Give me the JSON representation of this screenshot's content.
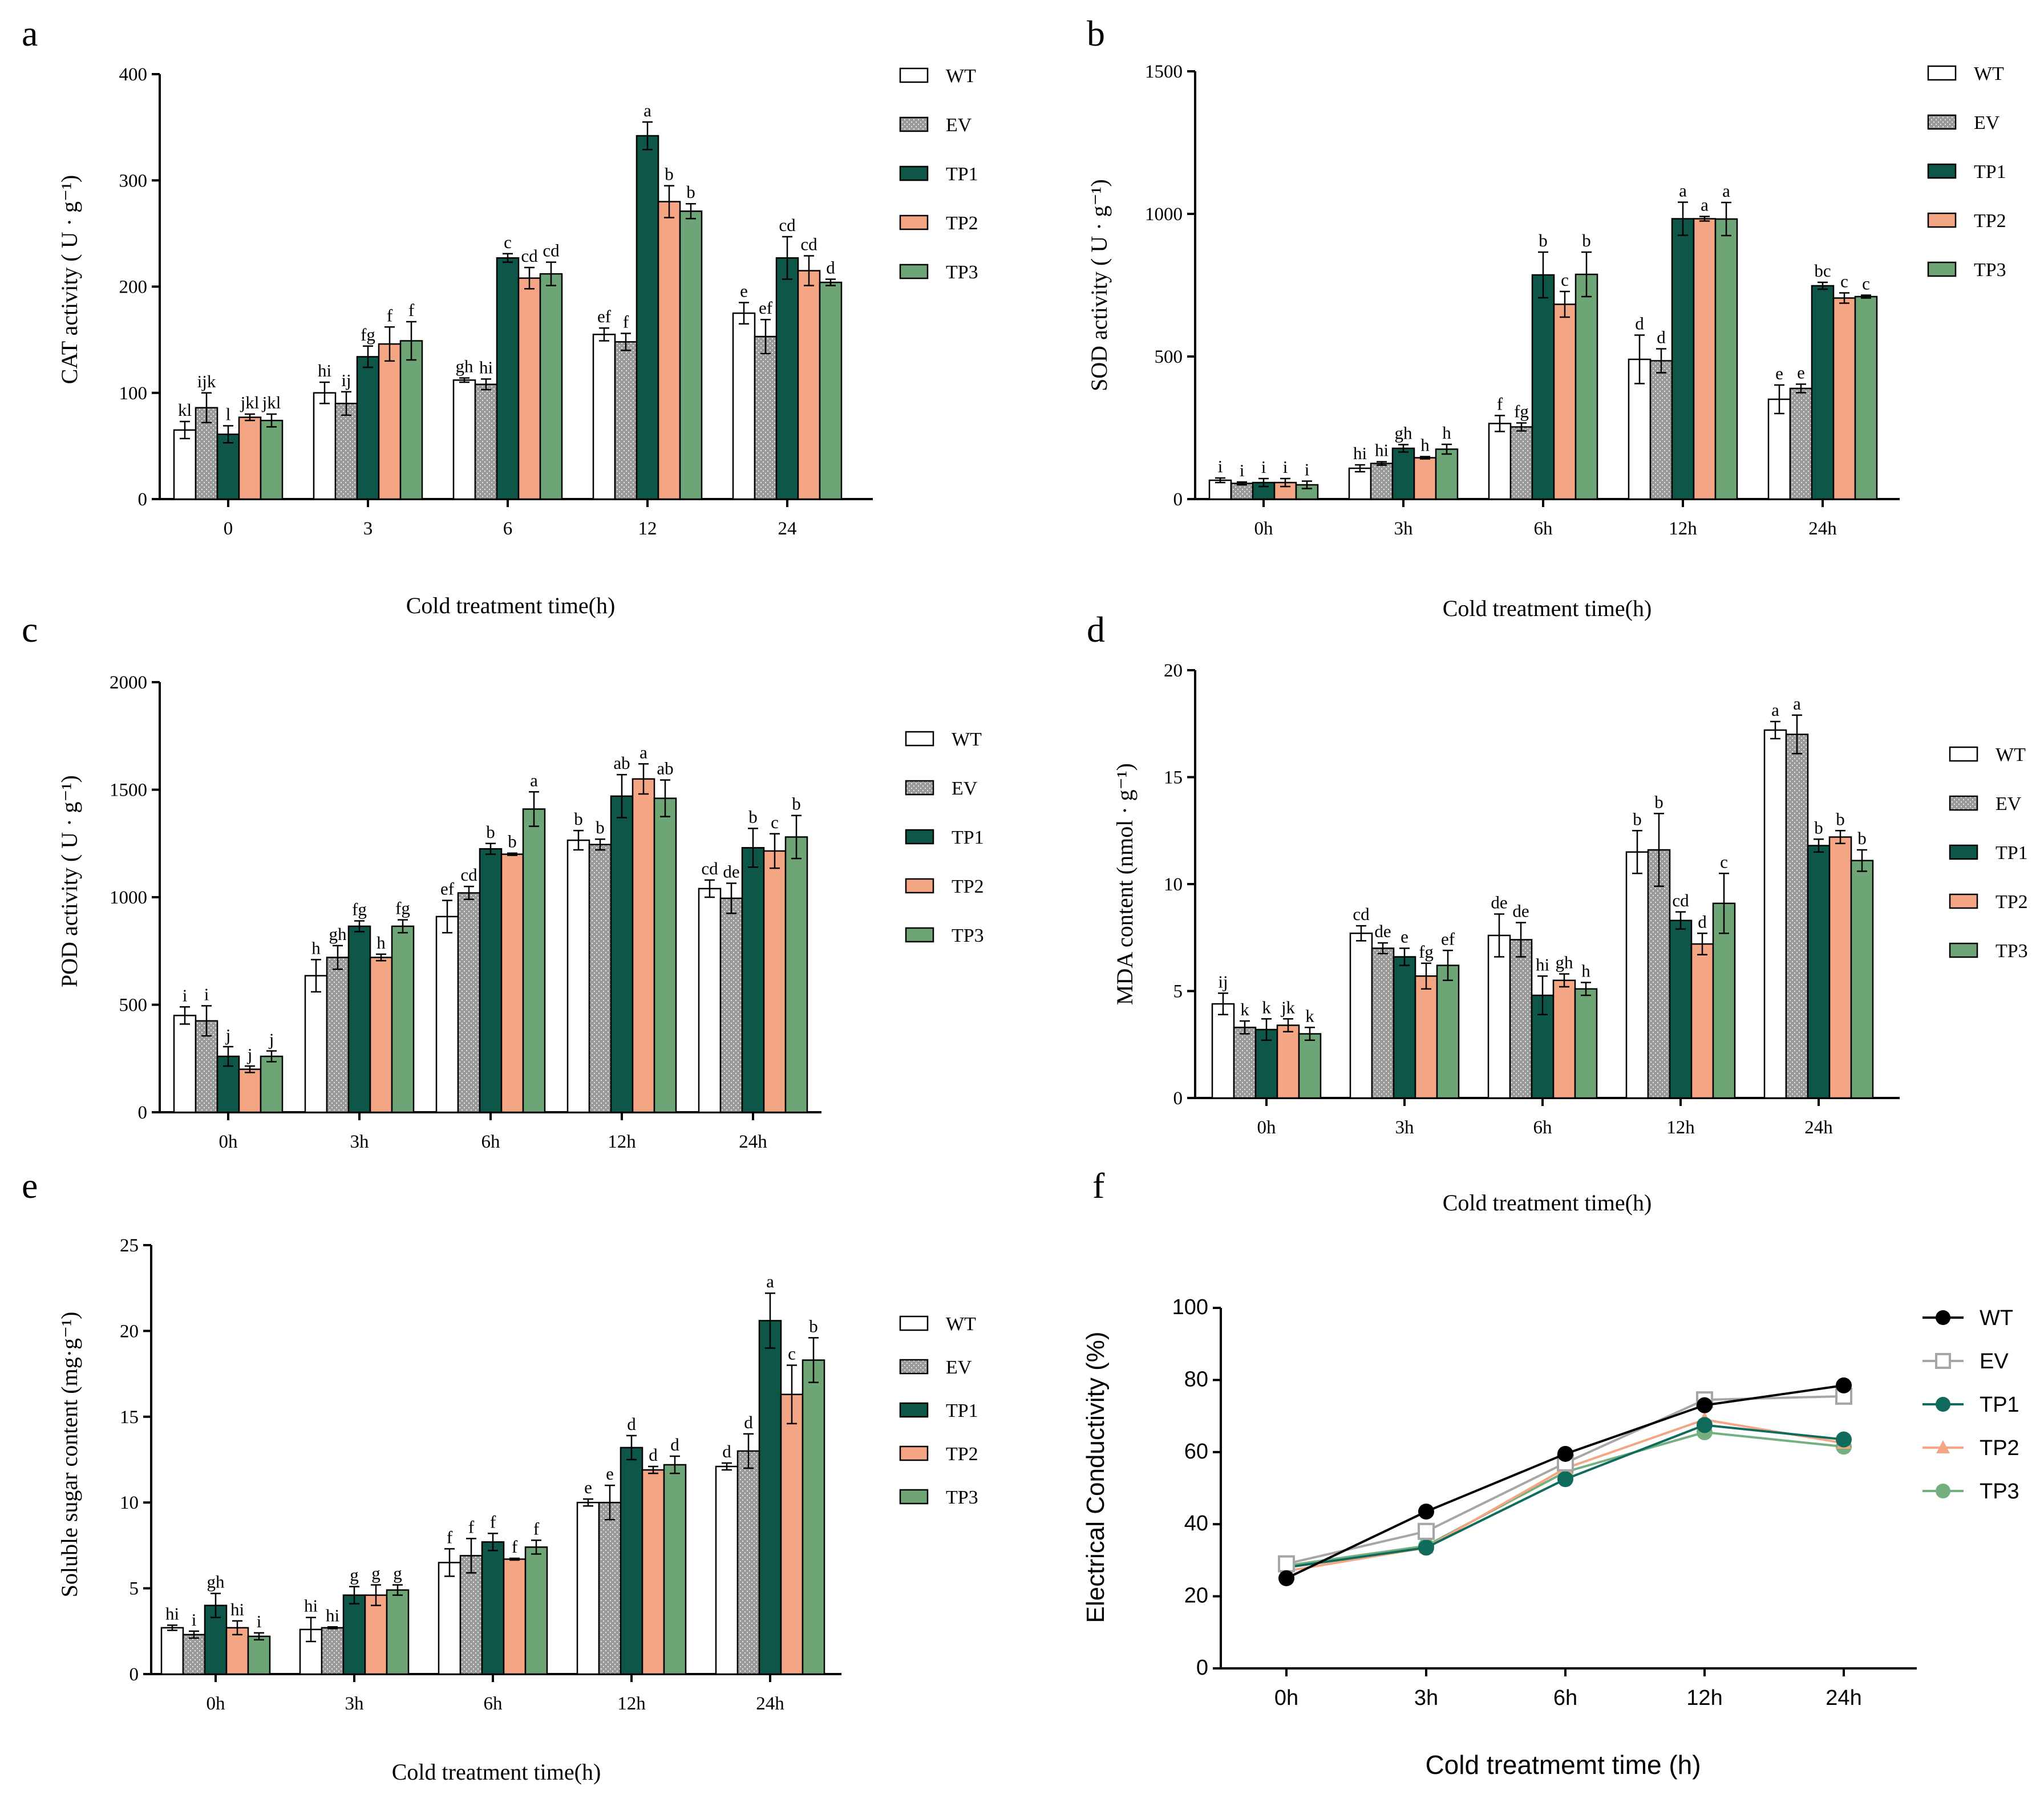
{
  "colors": {
    "WT": "#ffffff",
    "EV": "#9a9a9a",
    "TP1": "#0e5748",
    "TP2": "#f4a583",
    "TP3": "#6ea577",
    "axis": "#000000",
    "line_WT": "#000000",
    "line_EV": "#a6a6a6",
    "line_TP1": "#0f6b5c",
    "line_TP2": "#f4a583",
    "line_TP3": "#74b07f"
  },
  "legend_labels": [
    "WT",
    "EV",
    "TP1",
    "TP2",
    "TP3"
  ],
  "chart_data": [
    {
      "id": "a",
      "type": "bar",
      "ylabel": "CAT activity ( U · g⁻¹)",
      "xlabel": "Cold treatment time(h)",
      "categories": [
        "0",
        "3",
        "6",
        "12",
        "24"
      ],
      "ylim": [
        0,
        400
      ],
      "yticks": [
        "0",
        "100",
        "200",
        "300",
        "400"
      ],
      "series": [
        {
          "name": "WT",
          "values": [
            65,
            100,
            112,
            155,
            175
          ],
          "errors": [
            8,
            10,
            2,
            6,
            10
          ],
          "letters": [
            "kl",
            "hi",
            "gh",
            "ef",
            "e"
          ]
        },
        {
          "name": "EV",
          "values": [
            86,
            90,
            108,
            148,
            153
          ],
          "errors": [
            14,
            11,
            5,
            8,
            16
          ],
          "letters": [
            "ijk",
            "ij",
            "hi",
            "f",
            "ef"
          ]
        },
        {
          "name": "TP1",
          "values": [
            61,
            134,
            227,
            342,
            227
          ],
          "errors": [
            8,
            10,
            4,
            13,
            20
          ],
          "letters": [
            "l",
            "fg",
            "c",
            "a",
            "cd"
          ]
        },
        {
          "name": "TP2",
          "values": [
            77,
            146,
            208,
            280,
            215
          ],
          "errors": [
            3,
            16,
            10,
            15,
            14
          ],
          "letters": [
            "jkl",
            "f",
            "cd",
            "b",
            "cd"
          ]
        },
        {
          "name": "TP3",
          "values": [
            74,
            149,
            212,
            271,
            204
          ],
          "errors": [
            6,
            18,
            11,
            7,
            3
          ],
          "letters": [
            "jkl",
            "f",
            "cd",
            "b",
            "d"
          ]
        }
      ]
    },
    {
      "id": "b",
      "type": "bar",
      "ylabel": "SOD activity ( U · g⁻¹)",
      "xlabel": "Cold treatment time(h)",
      "categories": [
        "0h",
        "3h",
        "6h",
        "12h",
        "24h"
      ],
      "ylim": [
        0,
        1500
      ],
      "yticks": [
        "0",
        "500",
        "1000",
        "1500"
      ],
      "series": [
        {
          "name": "WT",
          "values": [
            66,
            108,
            265,
            490,
            350
          ],
          "errors": [
            8,
            12,
            28,
            85,
            50
          ],
          "letters": [
            "i",
            "hi",
            "f",
            "d",
            "e"
          ]
        },
        {
          "name": "EV",
          "values": [
            55,
            125,
            253,
            485,
            388
          ],
          "errors": [
            5,
            6,
            14,
            42,
            15
          ],
          "letters": [
            "i",
            "hi",
            "fg",
            "d",
            "e"
          ]
        },
        {
          "name": "TP1",
          "values": [
            58,
            178,
            786,
            983,
            748
          ],
          "errors": [
            14,
            13,
            80,
            58,
            12
          ],
          "letters": [
            "i",
            "gh",
            "b",
            "a",
            "bc"
          ]
        },
        {
          "name": "TP2",
          "values": [
            58,
            145,
            683,
            983,
            705
          ],
          "errors": [
            14,
            4,
            45,
            8,
            18
          ],
          "letters": [
            "i",
            "h",
            "c",
            "a",
            "c"
          ]
        },
        {
          "name": "TP3",
          "values": [
            50,
            175,
            788,
            982,
            710
          ],
          "errors": [
            13,
            17,
            78,
            58,
            5
          ],
          "letters": [
            "i",
            "h",
            "b",
            "a",
            "c"
          ]
        }
      ]
    },
    {
      "id": "c",
      "type": "bar",
      "ylabel": "POD activity ( U · g⁻¹)",
      "xlabel": "",
      "categories": [
        "0h",
        "3h",
        "6h",
        "12h",
        "24h"
      ],
      "ylim": [
        0,
        2000
      ],
      "yticks": [
        "0",
        "500",
        "1000",
        "1500",
        "2000"
      ],
      "series": [
        {
          "name": "WT",
          "values": [
            450,
            635,
            910,
            1265,
            1040
          ],
          "errors": [
            40,
            75,
            75,
            45,
            40
          ],
          "letters": [
            "i",
            "h",
            "ef",
            "b",
            "cd"
          ]
        },
        {
          "name": "EV",
          "values": [
            425,
            720,
            1020,
            1245,
            995
          ],
          "errors": [
            70,
            55,
            30,
            25,
            70
          ],
          "letters": [
            "i",
            "gh",
            "cd",
            "b",
            "de"
          ]
        },
        {
          "name": "TP1",
          "values": [
            260,
            865,
            1225,
            1470,
            1230
          ],
          "errors": [
            45,
            25,
            25,
            100,
            90
          ],
          "letters": [
            "j",
            "fg",
            "b",
            "ab",
            "b"
          ]
        },
        {
          "name": "TP2",
          "values": [
            200,
            720,
            1200,
            1550,
            1215
          ],
          "errors": [
            15,
            15,
            5,
            70,
            80
          ],
          "letters": [
            "j",
            "h",
            "b",
            "a",
            "c"
          ]
        },
        {
          "name": "TP3",
          "values": [
            260,
            865,
            1410,
            1460,
            1280
          ],
          "errors": [
            25,
            30,
            80,
            85,
            100
          ],
          "letters": [
            "j",
            "fg",
            "a",
            "ab",
            "b"
          ]
        }
      ]
    },
    {
      "id": "d",
      "type": "bar",
      "ylabel": "MDA content (nmol · g⁻¹)",
      "xlabel": "Cold treatment time(h)",
      "categories": [
        "0h",
        "3h",
        "6h",
        "12h",
        "24h"
      ],
      "ylim": [
        0,
        20
      ],
      "yticks": [
        "0",
        "5",
        "10",
        "15",
        "20"
      ],
      "series": [
        {
          "name": "WT",
          "values": [
            4.4,
            7.7,
            7.6,
            11.5,
            17.2
          ],
          "errors": [
            0.5,
            0.35,
            1.0,
            1.0,
            0.4
          ],
          "letters": [
            "ij",
            "cd",
            "de",
            "b",
            "a"
          ]
        },
        {
          "name": "EV",
          "values": [
            3.3,
            7.0,
            7.4,
            11.6,
            17.0
          ],
          "errors": [
            0.3,
            0.25,
            0.8,
            1.7,
            0.9
          ],
          "letters": [
            "k",
            "de",
            "de",
            "b",
            "a"
          ]
        },
        {
          "name": "TP1",
          "values": [
            3.2,
            6.6,
            4.8,
            8.3,
            11.8
          ],
          "errors": [
            0.5,
            0.4,
            0.9,
            0.4,
            0.3
          ],
          "letters": [
            "k",
            "e",
            "hi",
            "cd",
            "b"
          ]
        },
        {
          "name": "TP2",
          "values": [
            3.4,
            5.7,
            5.5,
            7.2,
            12.2
          ],
          "errors": [
            0.3,
            0.6,
            0.3,
            0.5,
            0.3
          ],
          "letters": [
            "jk",
            "fg",
            "gh",
            "d",
            "b"
          ]
        },
        {
          "name": "TP3",
          "values": [
            3.0,
            6.2,
            5.1,
            9.1,
            11.1
          ],
          "errors": [
            0.3,
            0.7,
            0.3,
            1.4,
            0.5
          ],
          "letters": [
            "k",
            "ef",
            "h",
            "c",
            "b"
          ]
        }
      ]
    },
    {
      "id": "e",
      "type": "bar",
      "ylabel": "Soluble sugar content (mg·g⁻¹)",
      "xlabel": "Cold treatment time(h)",
      "categories": [
        "0h",
        "3h",
        "6h",
        "12h",
        "24h"
      ],
      "ylim": [
        0,
        25
      ],
      "yticks": [
        "0",
        "5",
        "10",
        "15",
        "20",
        "25"
      ],
      "series": [
        {
          "name": "WT",
          "values": [
            2.7,
            2.6,
            6.5,
            10.0,
            12.1
          ],
          "errors": [
            0.15,
            0.7,
            0.8,
            0.2,
            0.2
          ],
          "letters": [
            "hi",
            "hi",
            "f",
            "e",
            "d"
          ]
        },
        {
          "name": "EV",
          "values": [
            2.3,
            2.7,
            6.9,
            10.0,
            13.0
          ],
          "errors": [
            0.2,
            0.05,
            1.0,
            1.0,
            1.0
          ],
          "letters": [
            "i",
            "hi",
            "f",
            "e",
            "d"
          ]
        },
        {
          "name": "TP1",
          "values": [
            4.0,
            4.6,
            7.7,
            13.2,
            20.6
          ],
          "errors": [
            0.7,
            0.5,
            0.5,
            0.7,
            1.6
          ],
          "letters": [
            "gh",
            "g",
            "f",
            "d",
            "a"
          ]
        },
        {
          "name": "TP2",
          "values": [
            2.7,
            4.6,
            6.7,
            11.9,
            16.3
          ],
          "errors": [
            0.4,
            0.6,
            0.05,
            0.2,
            1.7
          ],
          "letters": [
            "hi",
            "g",
            "f",
            "d",
            "c"
          ]
        },
        {
          "name": "TP3",
          "values": [
            2.2,
            4.9,
            7.4,
            12.2,
            18.3
          ],
          "errors": [
            0.2,
            0.3,
            0.4,
            0.5,
            1.3
          ],
          "letters": [
            "i",
            "g",
            "f",
            "d",
            "b"
          ]
        }
      ]
    },
    {
      "id": "f",
      "type": "line",
      "ylabel": "Electrical Conductivity (%)",
      "xlabel": "Cold treatmemt time (h)",
      "categories": [
        "0h",
        "3h",
        "6h",
        "12h",
        "24h"
      ],
      "ylim": [
        0,
        100
      ],
      "yticks": [
        "0",
        "20",
        "40",
        "60",
        "80",
        "100"
      ],
      "series": [
        {
          "name": "WT",
          "values": [
            25,
            43.5,
            59.5,
            73,
            78.5
          ],
          "marker": "circle"
        },
        {
          "name": "EV",
          "values": [
            29,
            38,
            57,
            74.5,
            75.5
          ],
          "marker": "square"
        },
        {
          "name": "TP1",
          "values": [
            28,
            33.5,
            52.5,
            67.5,
            63.5
          ],
          "marker": "circle"
        },
        {
          "name": "TP2",
          "values": [
            27,
            33.5,
            55.5,
            69,
            62.5
          ],
          "marker": "triangle"
        },
        {
          "name": "TP3",
          "values": [
            28.5,
            34,
            54.5,
            65.5,
            61.5
          ],
          "marker": "circle"
        }
      ]
    }
  ]
}
